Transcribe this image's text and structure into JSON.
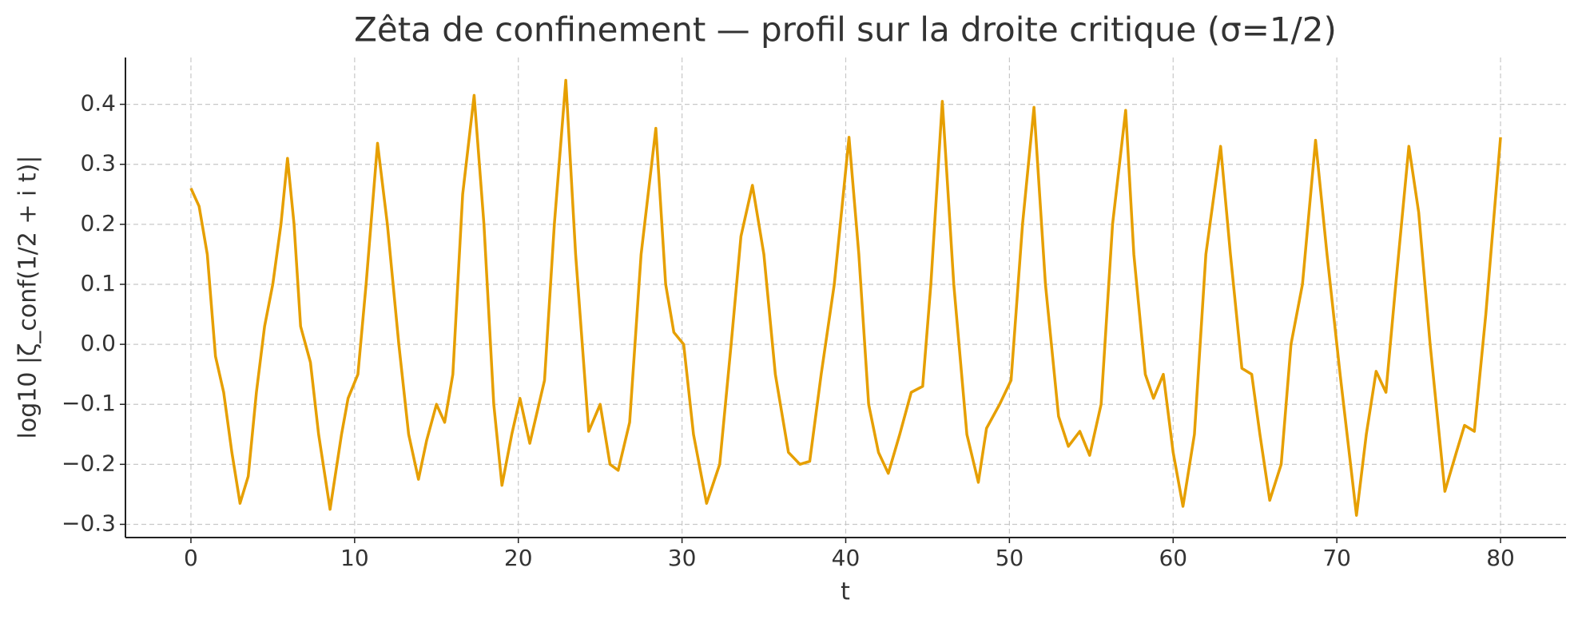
{
  "chart_data": {
    "type": "line",
    "title": "Zêta de confinement — profil sur la droite critique (σ=1/2)",
    "x_label": "t",
    "y_label": "log10 |ζ_conf(1/2 + i t)|",
    "color": "#e69f00",
    "grid": true,
    "xlim": [
      -4,
      84
    ],
    "ylim": [
      -0.322,
      0.478
    ],
    "xticks": [
      0,
      10,
      20,
      30,
      40,
      50,
      60,
      70,
      80
    ],
    "yticks": [
      {
        "value": -0.3,
        "label": "−0.3"
      },
      {
        "value": -0.2,
        "label": "−0.2"
      },
      {
        "value": -0.1,
        "label": "−0.1"
      },
      {
        "value": 0,
        "label": "0.0"
      },
      0.1,
      0.2,
      0.3,
      0.4
    ],
    "x": [
      0,
      0.5,
      1,
      1.5,
      2,
      2.5,
      3,
      3.5,
      4,
      4.5,
      5,
      5.5,
      5.9,
      6.3,
      6.7,
      7.3,
      7.8,
      8.5,
      9.2,
      9.6,
      10.2,
      10.7,
      11.4,
      12,
      12.7,
      13.3,
      13.9,
      14.4,
      15,
      15.5,
      16,
      16.6,
      17.3,
      17.9,
      18.5,
      19,
      19.6,
      20.1,
      20.7,
      21.6,
      22.2,
      22.9,
      23.5,
      24.3,
      25,
      25.6,
      26.1,
      26.8,
      27.5,
      28.4,
      29,
      29.5,
      30.1,
      30.7,
      31.5,
      32.3,
      33,
      33.6,
      34.3,
      35,
      35.7,
      36.5,
      37.2,
      37.8,
      38.5,
      39.3,
      40.2,
      40.8,
      41.4,
      42,
      42.6,
      43.3,
      44,
      44.7,
      45.2,
      45.9,
      46.6,
      47.4,
      48.1,
      48.6,
      49.4,
      50.1,
      50.8,
      51.5,
      52.2,
      53,
      53.6,
      54.3,
      54.9,
      55.6,
      56.3,
      57.1,
      57.6,
      58.3,
      58.8,
      59.4,
      60,
      60.6,
      61.3,
      62,
      62.9,
      63.5,
      64.2,
      64.8,
      65.3,
      65.9,
      66.6,
      67.2,
      67.9,
      68.7,
      69.4,
      70.2,
      71.2,
      71.8,
      72.4,
      73,
      73.6,
      74.4,
      75,
      75.7,
      76.6,
      77.3,
      77.8,
      78.4,
      79.1,
      80
    ],
    "values": [
      0.26,
      0.23,
      0.15,
      -0.02,
      -0.08,
      -0.18,
      -0.265,
      -0.22,
      -0.08,
      0.03,
      0.1,
      0.2,
      0.31,
      0.2,
      0.03,
      -0.03,
      -0.15,
      -0.275,
      -0.15,
      -0.09,
      -0.05,
      0.1,
      0.335,
      0.2,
      0,
      -0.15,
      -0.225,
      -0.16,
      -0.1,
      -0.13,
      -0.05,
      0.25,
      0.415,
      0.2,
      -0.1,
      -0.235,
      -0.15,
      -0.09,
      -0.165,
      -0.06,
      0.2,
      0.44,
      0.15,
      -0.145,
      -0.1,
      -0.2,
      -0.21,
      -0.13,
      0.15,
      0.36,
      0.1,
      0.02,
      0,
      -0.15,
      -0.265,
      -0.2,
      0,
      0.18,
      0.265,
      0.15,
      -0.05,
      -0.18,
      -0.2,
      -0.195,
      -0.05,
      0.1,
      0.345,
      0.15,
      -0.1,
      -0.18,
      -0.215,
      -0.15,
      -0.08,
      -0.07,
      0.1,
      0.405,
      0.1,
      -0.15,
      -0.23,
      -0.14,
      -0.1,
      -0.06,
      0.2,
      0.395,
      0.1,
      -0.12,
      -0.17,
      -0.145,
      -0.185,
      -0.1,
      0.2,
      0.39,
      0.15,
      -0.05,
      -0.09,
      -0.05,
      -0.18,
      -0.27,
      -0.15,
      0.15,
      0.33,
      0.15,
      -0.04,
      -0.05,
      -0.15,
      -0.26,
      -0.2,
      0,
      0.1,
      0.34,
      0.15,
      -0.05,
      -0.285,
      -0.15,
      -0.045,
      -0.08,
      0.1,
      0.33,
      0.22,
      0,
      -0.245,
      -0.18,
      -0.135,
      -0.145,
      0.05,
      0.345
    ]
  }
}
